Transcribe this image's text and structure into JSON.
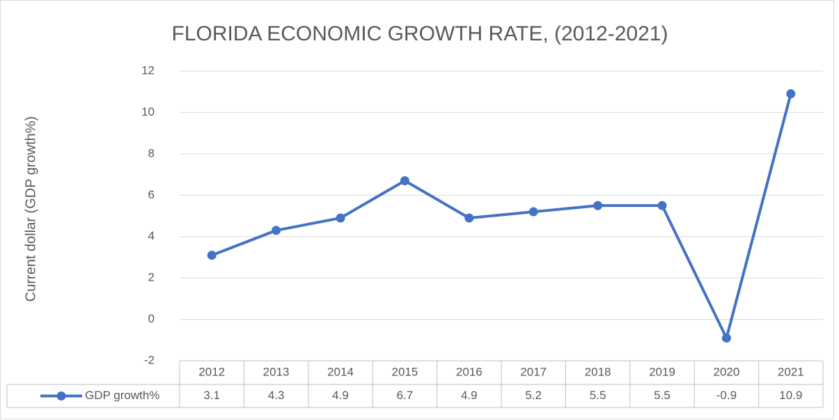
{
  "chart_data": {
    "type": "line",
    "title": "FLORIDA ECONOMIC GROWTH RATE, (2012-2021)",
    "y_label": "Current dollar (GDP growth%)",
    "categories": [
      "2012",
      "2013",
      "2014",
      "2015",
      "2016",
      "2017",
      "2018",
      "2019",
      "2020",
      "2021"
    ],
    "series": [
      {
        "name": "GDP growth%",
        "color": "#4472c4",
        "values": [
          3.1,
          4.3,
          4.9,
          6.7,
          4.9,
          5.2,
          5.5,
          5.5,
          -0.9,
          10.9
        ]
      }
    ],
    "ylim": [
      -2,
      12
    ],
    "yticks": [
      -2,
      0,
      2,
      4,
      6,
      8,
      10,
      12
    ],
    "grid": true,
    "data_table": true
  }
}
